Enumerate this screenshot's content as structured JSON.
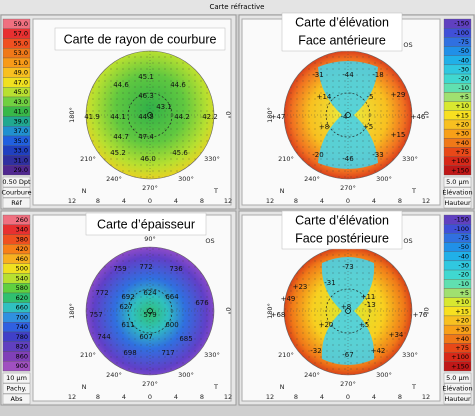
{
  "title": "Carte réfractive",
  "compass": {
    "top": "90°",
    "eye": "OS",
    "left": "180°",
    "right": "0°",
    "a210": "210°",
    "a240": "240°",
    "bottom": "270°",
    "a300": "300°",
    "a330": "330°",
    "nasal": "N",
    "temporal": "T",
    "ticks": [
      12,
      8,
      4,
      0,
      4,
      8,
      12
    ]
  },
  "panels": [
    {
      "overlay": [
        "Carte de rayon de courbure"
      ],
      "scale": {
        "labels": [
          "59.0",
          "57.0",
          "55.0",
          "53.0",
          "51.0",
          "49.0",
          "47.0",
          "45.0",
          "43.0",
          "41.0",
          "39.0",
          "37.0",
          "35.0",
          "33.0",
          "31.0",
          "29.0"
        ],
        "colors": [
          "#f07080",
          "#e83030",
          "#f05020",
          "#f07818",
          "#f89a18",
          "#f8c020",
          "#f0e020",
          "#b8e030",
          "#70d040",
          "#38b848",
          "#20a890",
          "#2090d0",
          "#2060e0",
          "#2040c0",
          "#3030a0",
          "#502890"
        ]
      },
      "footer": [
        "0.50 Dpt",
        "Courbure",
        "Réf"
      ],
      "values": [
        "45.1",
        "44.6",
        "44.6",
        "46.3",
        "43.1",
        "41.9",
        "44.1",
        "44.5",
        "44.2",
        "42.2",
        "44.7",
        "47.4",
        "45.2",
        "46.0",
        "45.6"
      ]
    },
    {
      "overlay": [
        "Carte d’élévation",
        "Face antérieure"
      ],
      "scale": {
        "labels": [
          "-150",
          "-100",
          "-75",
          "-50",
          "-40",
          "-30",
          "-20",
          "-10",
          "+5",
          "+10",
          "+15",
          "+20",
          "+30",
          "+40",
          "+75",
          "+100",
          "+150"
        ],
        "colors": [
          "#6040c0",
          "#4050d8",
          "#3070e0",
          "#2090e8",
          "#20b0e8",
          "#30c8e0",
          "#40d8d0",
          "#60e0b0",
          "#a0e070",
          "#d8e830",
          "#f8e020",
          "#f8c020",
          "#f8a018",
          "#f07818",
          "#e84818",
          "#d82818",
          "#c01818"
        ]
      },
      "footer": [
        "5.0 µm",
        "Élévation",
        "Hauteur"
      ],
      "values": [
        "-31",
        "-44",
        "-18",
        "+14",
        "-5",
        "+29",
        "+47",
        "-4",
        "+46",
        "+8",
        "+5",
        "+15",
        "-20",
        "-46",
        "-33"
      ]
    },
    {
      "overlay": [
        "Carte d’épaisseur"
      ],
      "scale": {
        "labels": [
          "260",
          "340",
          "380",
          "420",
          "460",
          "500",
          "540",
          "580",
          "620",
          "660",
          "700",
          "740",
          "780",
          "820",
          "860",
          "900"
        ],
        "colors": [
          "#f07080",
          "#e83030",
          "#f05020",
          "#f88018",
          "#f8b020",
          "#f0e020",
          "#b8e030",
          "#60d040",
          "#30c070",
          "#30c0c0",
          "#3090e0",
          "#3060e0",
          "#4040c8",
          "#6040c0",
          "#8040b8",
          "#a050c0"
        ]
      },
      "footer": [
        "10 µm",
        "Pachy.",
        "Abs"
      ],
      "values": [
        "759",
        "772",
        "736",
        "772",
        "692",
        "624",
        "664",
        "676",
        "757",
        "627",
        "579",
        "611",
        "600",
        "744",
        "607",
        "685",
        "698",
        "717"
      ]
    },
    {
      "overlay": [
        "Carte d’élévation",
        "Face postérieure"
      ],
      "scale": {
        "labels": [
          "-150",
          "-100",
          "-75",
          "-50",
          "-40",
          "-30",
          "-20",
          "-10",
          "+5",
          "+10",
          "+15",
          "+20",
          "+30",
          "+40",
          "+75",
          "+100",
          "+150"
        ],
        "colors": [
          "#6040c0",
          "#4050d8",
          "#3070e0",
          "#2090e8",
          "#20b0e8",
          "#30c8e0",
          "#40d8d0",
          "#60e0b0",
          "#a0e070",
          "#d8e830",
          "#f8e020",
          "#f8c020",
          "#f8a018",
          "#f07818",
          "#e84818",
          "#d82818",
          "#c01818"
        ]
      },
      "footer": [
        "5.0 µm",
        "Élévation",
        "Hauteur"
      ],
      "values": [
        "-73",
        "-31",
        "+23",
        "+11",
        "+49",
        "+68",
        "+8",
        "-13",
        "+76",
        "+20",
        "+5",
        "+34",
        "-32",
        "-67",
        "+42"
      ]
    }
  ]
}
